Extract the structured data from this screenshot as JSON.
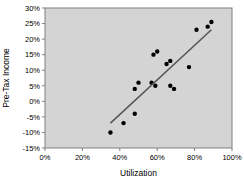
{
  "chart_data": {
    "type": "scatter",
    "x_label": "Utilization",
    "y_label": "Pre-Tax Income",
    "grid": false,
    "series": [
      {
        "type": "scatter",
        "color": "#000000",
        "marker": "circle",
        "x": [
          35,
          42,
          48,
          48,
          50,
          57,
          59,
          58,
          60,
          65,
          67,
          67,
          69,
          77,
          81,
          87,
          89
        ],
        "values": [
          -10,
          -7,
          -4,
          4,
          6,
          6,
          5,
          15,
          16,
          12,
          13,
          5,
          4,
          11,
          23,
          24,
          25.5
        ]
      },
      {
        "type": "line",
        "color": "#555555",
        "line_style": "solid",
        "x": [
          35,
          89
        ],
        "values": [
          -7,
          23
        ]
      }
    ],
    "xlim": [
      0,
      100
    ],
    "xticks": [
      {
        "value": 0,
        "label": "0%"
      },
      {
        "value": 20,
        "label": "20%"
      },
      {
        "value": 40,
        "label": "40%"
      },
      {
        "value": 60,
        "label": "60%"
      },
      {
        "value": 80,
        "label": "80%"
      },
      {
        "value": 100,
        "label": "100%"
      }
    ],
    "ylim": [
      -15,
      30
    ],
    "yticks": [
      {
        "value": -15,
        "label": "-15%"
      },
      {
        "value": -10,
        "label": "-10%"
      },
      {
        "value": -5,
        "label": "-5%"
      },
      {
        "value": 0,
        "label": "0%"
      },
      {
        "value": 5,
        "label": "5%"
      },
      {
        "value": 10,
        "label": "10%"
      },
      {
        "value": 15,
        "label": "15%"
      },
      {
        "value": 20,
        "label": "20%"
      },
      {
        "value": 25,
        "label": "25%"
      },
      {
        "value": 30,
        "label": "30%"
      }
    ]
  }
}
